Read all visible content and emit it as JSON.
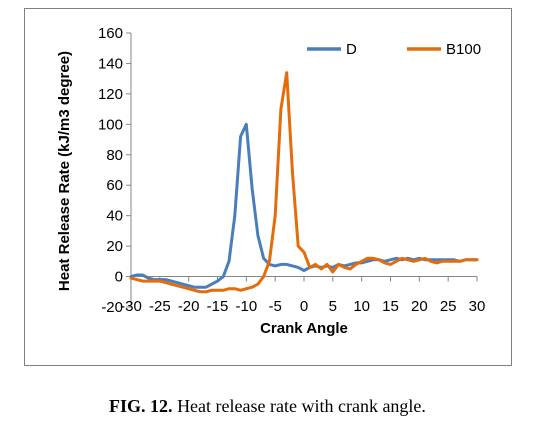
{
  "chart_data": {
    "type": "line",
    "xlabel": "Crank Angle",
    "ylabel": "Heat Release Rate (kJ/m3 degree)",
    "xlim": [
      -30,
      30
    ],
    "ylim": [
      -20,
      160
    ],
    "xticks": [
      "-30",
      "-25",
      "-20",
      "-15",
      "-10",
      "-5",
      "0",
      "5",
      "10",
      "15",
      "20",
      "25",
      "30"
    ],
    "yticks": [
      "-20",
      "0",
      "20",
      "40",
      "60",
      "80",
      "100",
      "120",
      "140",
      "160"
    ],
    "grid": false,
    "legend_position": "top-right",
    "series": [
      {
        "name": "D",
        "color": "#4a7ebb",
        "x": [
          -30,
          -29,
          -28,
          -27,
          -26,
          -25,
          -24,
          -23,
          -22,
          -21,
          -20,
          -19,
          -18,
          -17,
          -16,
          -15,
          -14,
          -13,
          -12,
          -11,
          -10,
          -9,
          -8,
          -7,
          -6,
          -5,
          -4,
          -3,
          -2,
          -1,
          0,
          1,
          2,
          3,
          4,
          5,
          6,
          7,
          8,
          9,
          10,
          11,
          12,
          13,
          14,
          15,
          16,
          17,
          18,
          19,
          20,
          21,
          22,
          23,
          24,
          25,
          26,
          27,
          28,
          29,
          30
        ],
        "y": [
          0,
          1,
          1,
          -1,
          -2,
          -2,
          -2,
          -3,
          -4,
          -5,
          -6,
          -7,
          -7,
          -7,
          -5,
          -3,
          0,
          10,
          40,
          92,
          100,
          58,
          27,
          12,
          8,
          7,
          8,
          8,
          7,
          6,
          4,
          6,
          7,
          6,
          7,
          6,
          8,
          7,
          8,
          9,
          9,
          10,
          11,
          11,
          10,
          11,
          12,
          11,
          12,
          11,
          12,
          11,
          11,
          11,
          11,
          11,
          11,
          10,
          11,
          11,
          11
        ]
      },
      {
        "name": "B100",
        "color": "#e46c0a",
        "x": [
          -30,
          -29,
          -28,
          -27,
          -26,
          -25,
          -24,
          -23,
          -22,
          -21,
          -20,
          -19,
          -18,
          -17,
          -16,
          -15,
          -14,
          -13,
          -12,
          -11,
          -10,
          -9,
          -8,
          -7,
          -6,
          -5,
          -4,
          -3,
          -2,
          -1,
          0,
          1,
          2,
          3,
          4,
          5,
          6,
          7,
          8,
          9,
          10,
          11,
          12,
          13,
          14,
          15,
          16,
          17,
          18,
          19,
          20,
          21,
          22,
          23,
          24,
          25,
          26,
          27,
          28,
          29,
          30
        ],
        "y": [
          -1,
          -2,
          -3,
          -3,
          -3,
          -3,
          -4,
          -5,
          -6,
          -7,
          -8,
          -9,
          -10,
          -10,
          -9,
          -9,
          -9,
          -8,
          -8,
          -9,
          -8,
          -7,
          -5,
          0,
          10,
          40,
          110,
          134,
          68,
          20,
          16,
          6,
          8,
          5,
          8,
          3,
          8,
          6,
          5,
          8,
          10,
          12,
          12,
          11,
          9,
          8,
          10,
          12,
          11,
          10,
          11,
          12,
          10,
          9,
          10,
          10,
          10,
          10,
          11,
          11,
          11
        ]
      }
    ]
  },
  "caption": {
    "label": "FIG. 12.",
    "text": " Heat release rate with crank angle."
  }
}
